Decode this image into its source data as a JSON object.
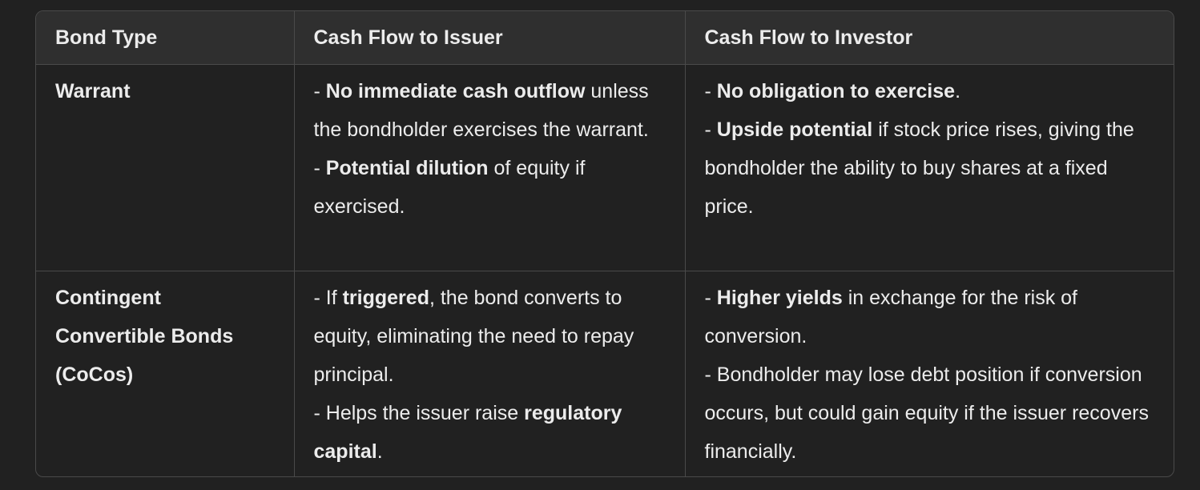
{
  "table": {
    "headers": [
      "Bond Type",
      "Cash Flow to Issuer",
      "Cash Flow to Investor"
    ],
    "rows": [
      {
        "bond_type": "Warrant",
        "issuer": [
          {
            "pre": "- ",
            "bold": "No immediate cash outflow",
            "post": " unless the bondholder exercises the warrant."
          },
          {
            "pre": "- ",
            "bold": "Potential dilution",
            "post": " of equity if exercised."
          }
        ],
        "investor": [
          {
            "pre": "- ",
            "bold": "No obligation to exercise",
            "post": "."
          },
          {
            "pre": "- ",
            "bold": "Upside potential",
            "post": " if stock price rises, giving the bondholder the ability to buy shares at a fixed price."
          }
        ]
      },
      {
        "bond_type": "Contingent Convertible Bonds (CoCos)",
        "issuer": [
          {
            "pre": "- If ",
            "bold": "triggered",
            "post": ", the bond converts to equity, eliminating the need to repay principal."
          },
          {
            "pre": "- Helps the issuer raise ",
            "bold": "regulatory capital",
            "post": "."
          }
        ],
        "investor": [
          {
            "pre": "- ",
            "bold": "Higher yields",
            "post": " in exchange for the risk of conversion."
          },
          {
            "pre": "- Bondholder may lose debt position if conversion occurs, but could gain equity if the issuer recovers financially.",
            "bold": "",
            "post": ""
          }
        ]
      }
    ]
  }
}
